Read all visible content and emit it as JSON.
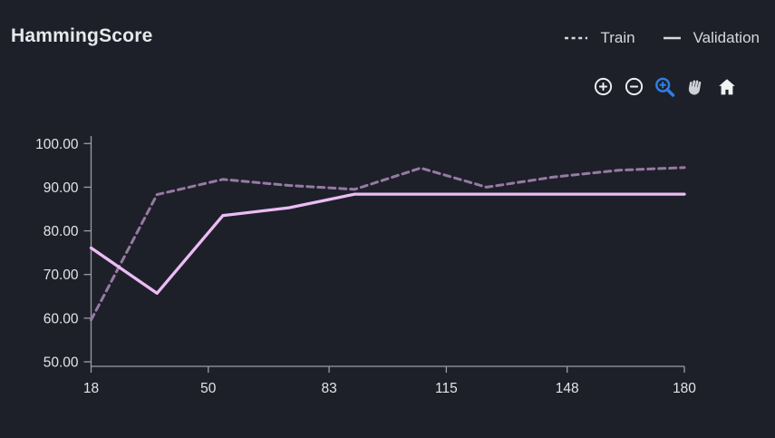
{
  "header": {
    "title": "HammingScore"
  },
  "legend": {
    "items": [
      {
        "label": "Train",
        "marker": "dashed-line"
      },
      {
        "label": "Validation",
        "marker": "solid-line"
      }
    ]
  },
  "toolbar": {
    "buttons": [
      {
        "name": "zoom-in",
        "icon": "plus-circle-icon",
        "active": false
      },
      {
        "name": "zoom-out",
        "icon": "minus-circle-icon",
        "active": false
      },
      {
        "name": "zoom-to-selection",
        "icon": "magnifier-plus-icon",
        "active": true
      },
      {
        "name": "pan",
        "icon": "hand-icon",
        "active": false
      },
      {
        "name": "reset-view",
        "icon": "home-icon",
        "active": false
      }
    ],
    "active_color": "#2e7ee0"
  },
  "colors": {
    "background": "#1e2029",
    "title_text": "#e7e8eb",
    "legend_text": "#d5d7db",
    "legend_marker": "#d6d8dc",
    "tick_text": "#e3e4e8",
    "axis": "#9b9ca3",
    "train_line": "#957aa4",
    "validation_line": "#ecbcf5"
  },
  "chart_data": {
    "type": "line",
    "title": "HammingScore",
    "xlabel": "",
    "ylabel": "",
    "x": [
      18,
      36,
      54,
      72,
      90,
      108,
      126,
      144,
      162,
      180
    ],
    "series": [
      {
        "name": "Train",
        "style": "dashed",
        "color": "#957aa4",
        "values": [
          59.6,
          88.3,
          91.8,
          90.4,
          89.5,
          94.4,
          90.0,
          92.3,
          93.9,
          94.5
        ]
      },
      {
        "name": "Validation",
        "style": "solid",
        "color": "#ecbcf5",
        "values": [
          76.1,
          65.7,
          83.5,
          85.3,
          88.4,
          88.4,
          88.4,
          88.4,
          88.4,
          88.4
        ]
      }
    ],
    "xlim": [
      18,
      180
    ],
    "ylim": [
      50,
      100
    ],
    "xticks": [
      18,
      50,
      83,
      115,
      148,
      180
    ],
    "yticks": [
      {
        "value": 100,
        "label": "100.00"
      },
      {
        "value": 90,
        "label": "90.00"
      },
      {
        "value": 80,
        "label": "80.00"
      },
      {
        "value": 70,
        "label": "70.00"
      },
      {
        "value": 60,
        "label": "60.00"
      },
      {
        "value": 50,
        "label": "50.00"
      }
    ],
    "grid": false,
    "legend_position": "top-right"
  }
}
